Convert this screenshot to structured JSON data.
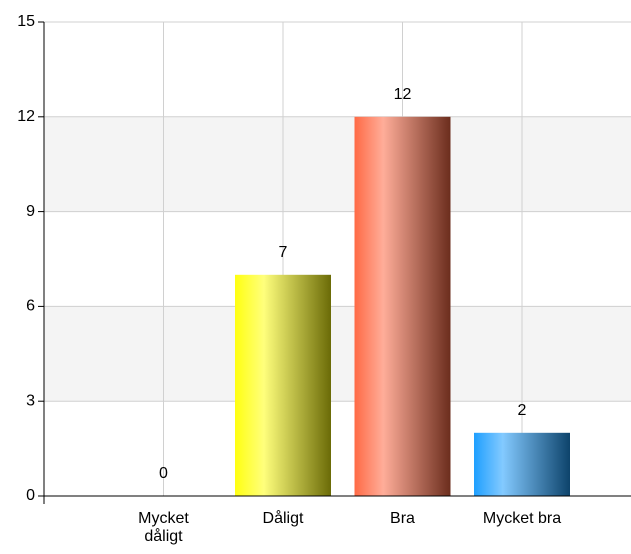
{
  "chart_data": {
    "type": "bar",
    "categories": [
      "Mycket dåligt",
      "Dåligt",
      "Bra",
      "Mycket bra"
    ],
    "values": [
      0,
      7,
      12,
      2
    ],
    "colors": [
      "#1e9fff",
      "#ffff10",
      "#ff6a45",
      "#1e9fff"
    ],
    "ylim": [
      0,
      15
    ],
    "yticks": [
      0,
      3,
      6,
      9,
      12,
      15
    ],
    "grid": true
  }
}
